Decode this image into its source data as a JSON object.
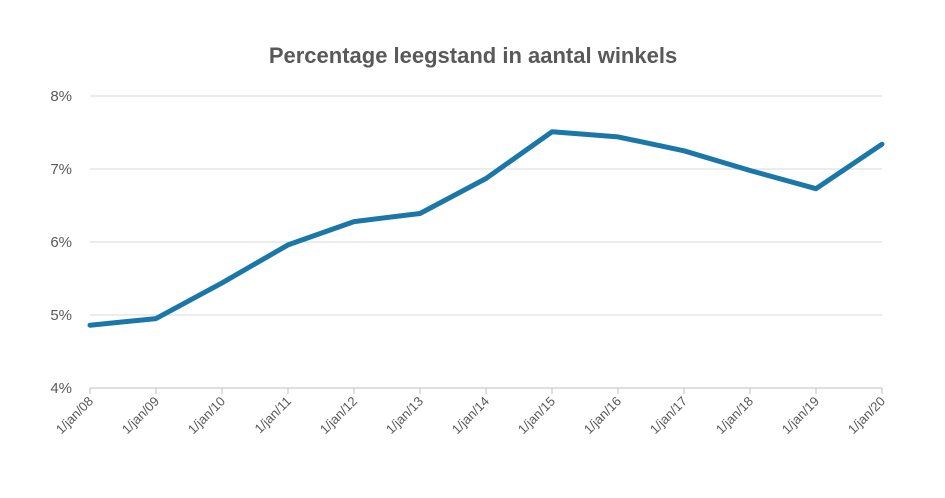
{
  "chart_data": {
    "type": "line",
    "title": "Percentage leegstand in aantal winkels",
    "xlabel": "",
    "ylabel": "",
    "categories": [
      "1/jan/08",
      "1/jan/09",
      "1/jan/10",
      "1/jan/11",
      "1/jan/12",
      "1/jan/13",
      "1/jan/14",
      "1/jan/15",
      "1/jan/16",
      "1/jan/17",
      "1/jan/18",
      "1/jan/19",
      "1/jan/20"
    ],
    "series": [
      {
        "values": [
          4.86,
          4.95,
          5.44,
          5.96,
          6.28,
          6.39,
          6.87,
          7.51,
          7.44,
          7.25,
          6.98,
          6.73,
          7.34
        ]
      }
    ],
    "ylim": [
      4,
      8
    ],
    "yticks": [
      "4%",
      "5%",
      "6%",
      "7%",
      "8%"
    ],
    "grid": true,
    "legend": "none",
    "line_color": "#1a77a8"
  }
}
